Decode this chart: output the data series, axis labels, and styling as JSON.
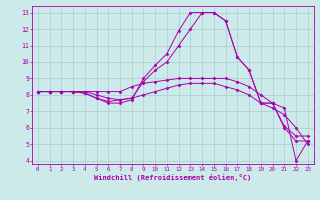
{
  "xlabel": "Windchill (Refroidissement éolien,°C)",
  "xlim": [
    -0.5,
    23.5
  ],
  "ylim": [
    3.8,
    13.4
  ],
  "xticks": [
    0,
    1,
    2,
    3,
    4,
    5,
    6,
    7,
    8,
    9,
    10,
    11,
    12,
    13,
    14,
    15,
    16,
    17,
    18,
    19,
    20,
    21,
    22,
    23
  ],
  "yticks": [
    4,
    5,
    6,
    7,
    8,
    9,
    10,
    11,
    12,
    13
  ],
  "background_color": "#cceaea",
  "line_color": "#aa00aa",
  "grid_color": "#aacccc",
  "lines": [
    [
      8.2,
      8.2,
      8.2,
      8.2,
      8.1,
      7.8,
      7.5,
      7.5,
      7.7,
      9.0,
      9.8,
      10.5,
      11.9,
      13.0,
      13.0,
      13.0,
      12.5,
      10.3,
      9.5,
      7.5,
      7.5,
      6.0,
      5.2,
      5.2
    ],
    [
      8.2,
      8.2,
      8.2,
      8.2,
      8.1,
      7.8,
      7.6,
      7.7,
      7.8,
      8.8,
      9.5,
      10.0,
      11.0,
      12.0,
      13.0,
      13.0,
      12.5,
      10.3,
      9.5,
      7.5,
      7.5,
      6.1,
      5.5,
      5.5
    ],
    [
      8.2,
      8.2,
      8.2,
      8.2,
      8.2,
      8.2,
      8.2,
      8.2,
      8.5,
      8.7,
      8.8,
      8.9,
      9.0,
      9.0,
      9.0,
      9.0,
      9.0,
      8.8,
      8.5,
      8.0,
      7.5,
      7.2,
      4.0,
      5.2
    ],
    [
      8.2,
      8.2,
      8.2,
      8.2,
      8.2,
      8.0,
      7.8,
      7.7,
      7.8,
      8.0,
      8.2,
      8.4,
      8.6,
      8.7,
      8.7,
      8.7,
      8.5,
      8.3,
      8.0,
      7.5,
      7.2,
      6.8,
      6.0,
      5.0
    ]
  ],
  "tick_fontsize": 4.2,
  "xlabel_fontsize": 5.0
}
